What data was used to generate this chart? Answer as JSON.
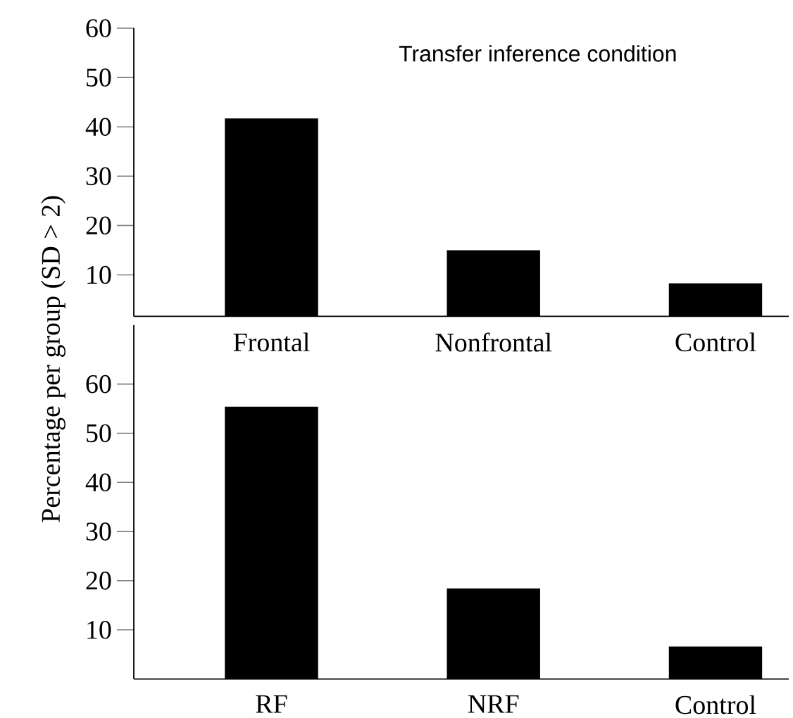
{
  "chart_data": [
    {
      "type": "bar",
      "title": "Transfer inference condition",
      "ylabel": "Percentage per group (SD > 2)",
      "categories": [
        "Frontal",
        "Nonfrontal",
        "Control"
      ],
      "values": [
        41.7,
        15.0,
        8.3
      ],
      "color": "#000000",
      "ylim": [
        1.6,
        60
      ],
      "yticks": [
        10,
        20,
        30,
        40,
        50,
        60
      ]
    },
    {
      "type": "bar",
      "categories": [
        "RF",
        "NRF",
        "Control"
      ],
      "values": [
        55.4,
        18.4,
        6.6
      ],
      "color": "#000000",
      "ylim": [
        0,
        72
      ],
      "yticks": [
        10,
        20,
        30,
        40,
        50,
        60
      ]
    }
  ]
}
